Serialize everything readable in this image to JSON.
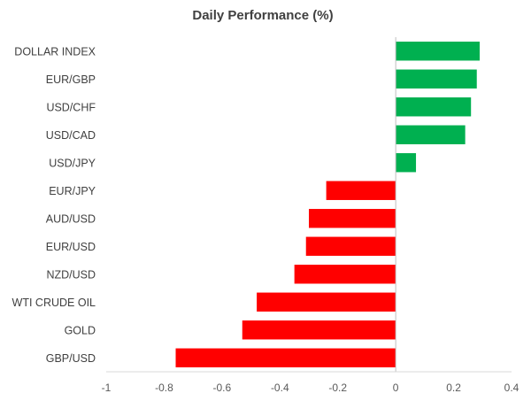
{
  "chart_data": {
    "type": "bar",
    "orientation": "horizontal",
    "title": "Daily Performance (%)",
    "xlabel": "",
    "ylabel": "",
    "xlim": [
      -1,
      0.4
    ],
    "x_ticks": [
      -1,
      -0.8,
      -0.6,
      -0.4,
      -0.2,
      0,
      0.2,
      0.4
    ],
    "x_tick_labels": [
      "-1",
      "-0.8",
      "-0.6",
      "-0.4",
      "-0.2",
      "0",
      "0.2",
      "0.4"
    ],
    "grid": false,
    "legend": "none",
    "categories": [
      "DOLLAR INDEX",
      "EUR/GBP",
      "USD/CHF",
      "USD/CAD",
      "USD/JPY",
      "EUR/JPY",
      "AUD/USD",
      "EUR/USD",
      "NZD/USD",
      "WTI CRUDE OIL",
      "GOLD",
      "GBP/USD"
    ],
    "values": [
      0.29,
      0.28,
      0.26,
      0.24,
      0.07,
      -0.24,
      -0.3,
      -0.31,
      -0.35,
      -0.48,
      -0.53,
      -0.76
    ],
    "colors": {
      "positive": "#00b050",
      "negative": "#ff0000"
    }
  }
}
